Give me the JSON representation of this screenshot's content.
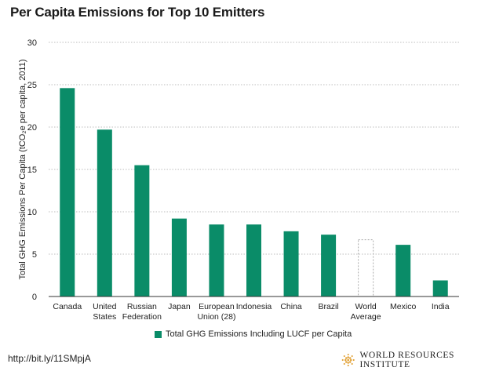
{
  "header": {
    "title": "Per Capita Emissions for Top 10 Emitters"
  },
  "legend": {
    "label": "Total GHG Emissions Including LUCF per Capita"
  },
  "footer": {
    "url": "http://bit.ly/11SMpjA",
    "organization": "WORLD RESOURCES INSTITUTE"
  },
  "colors": {
    "bar": "#0a8c68",
    "highlight_outline": "#aaaaaa",
    "grid": "#bdbdbd",
    "logo": "#e2a33a"
  },
  "chart_data": {
    "type": "bar",
    "title": "Per Capita Emissions for Top 10 Emitters",
    "ylabel": "Total GHG Emissions Per Capita (tCO₂e per capita, 2011)",
    "xlabel": "",
    "ylim": [
      0,
      30
    ],
    "yticks": [
      0,
      5,
      10,
      15,
      20,
      25,
      30
    ],
    "grid": "horizontal dotted",
    "legend_position": "bottom",
    "categories": [
      [
        "Canada"
      ],
      [
        "United",
        "States"
      ],
      [
        "Russian",
        "Federation"
      ],
      [
        "Japan"
      ],
      [
        "European",
        "Union (28)"
      ],
      [
        "Indonesia"
      ],
      [
        "China"
      ],
      [
        "Brazil"
      ],
      [
        "World",
        "Average"
      ],
      [
        "Mexico"
      ],
      [
        "India"
      ]
    ],
    "series": [
      {
        "name": "Total GHG Emissions Including LUCF per Capita",
        "values": [
          24.6,
          19.7,
          15.5,
          9.2,
          8.5,
          8.5,
          7.7,
          7.3,
          6.7,
          6.1,
          1.9
        ],
        "outlined_only": [
          false,
          false,
          false,
          false,
          false,
          false,
          false,
          false,
          true,
          false,
          false
        ]
      }
    ]
  }
}
